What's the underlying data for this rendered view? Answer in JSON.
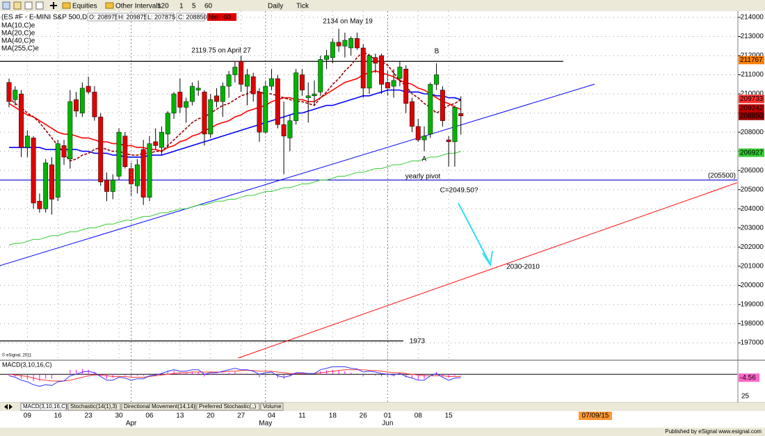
{
  "toolbar": {
    "items": [
      "Equities",
      "Other Intervals",
      "120",
      "1",
      "5",
      "60",
      "Daily",
      "Tick"
    ]
  },
  "quote": {
    "fields": [
      "O: 208975",
      "H: 209875",
      "L: 207875",
      "C: 208850"
    ],
    "net": "Net: -50"
  },
  "tabs": [
    "MACD(3,10,16,C)",
    "Stochastic(14(1),3)",
    "Directional Movement(14,14)",
    "Preferred Stochastic(,,)",
    "Volume"
  ],
  "footer": "Published by eSignal  www.esignal.com",
  "chart_data": {
    "type": "candlestick",
    "title": "(ES #F - E-MINI S&P 500,D)",
    "categories": [
      null,
      null,
      null,
      "09",
      null,
      null,
      null,
      null,
      "16",
      null,
      null,
      null,
      null,
      "23",
      null,
      null,
      null,
      null,
      "30",
      null,
      null,
      null,
      null,
      "06",
      null,
      null,
      null,
      null,
      "13",
      null,
      null,
      null,
      null,
      "20",
      null,
      null,
      null,
      null,
      "27",
      null,
      null,
      null,
      null,
      "04",
      null,
      null,
      null,
      null,
      "11",
      null,
      null,
      null,
      null,
      "18",
      null,
      null,
      null,
      null,
      "26",
      null,
      null,
      null,
      "01",
      null,
      null,
      null,
      null,
      "08",
      null,
      null,
      null,
      null,
      "15",
      null,
      null
    ],
    "category_groups": [
      null,
      null,
      null,
      null,
      null,
      null,
      null,
      null,
      null,
      null,
      null,
      null,
      null,
      null,
      null,
      null,
      null,
      null,
      null,
      null,
      "Apr",
      null,
      null,
      null,
      null,
      null,
      null,
      null,
      null,
      null,
      null,
      null,
      null,
      null,
      null,
      null,
      null,
      null,
      null,
      null,
      null,
      null,
      "May",
      null,
      null,
      null,
      null,
      null,
      null,
      null,
      null,
      null,
      null,
      null,
      null,
      null,
      null,
      null,
      null,
      null,
      null,
      null,
      "Jun",
      null,
      null,
      null,
      null,
      null,
      null,
      null,
      null,
      null,
      null,
      null,
      null
    ],
    "open": [
      210600,
      209700,
      210000,
      207200,
      207700,
      204400,
      204000,
      206300,
      204600,
      207300,
      206600,
      209700,
      209000,
      210400,
      210100,
      208800,
      205500,
      204900,
      205700,
      207800,
      206100,
      205200,
      207100,
      204600,
      207500,
      207200,
      207900,
      209000,
      210100,
      209300,
      209600,
      210200,
      210100,
      207900,
      209900,
      209600,
      210400,
      211000,
      211700,
      210400,
      210900,
      210100,
      208000,
      210400,
      210800,
      208400,
      207700,
      208600,
      211000,
      209800,
      209900,
      210100,
      211800,
      211900,
      212700,
      212500,
      212400,
      212900,
      212400,
      210300,
      211900,
      212000,
      210600,
      210400,
      210800,
      211300,
      209600,
      208300,
      207600,
      207900,
      210500,
      210200,
      207600,
      207500,
      208975
    ],
    "high": [
      210800,
      210400,
      210200,
      208100,
      207800,
      204800,
      206600,
      206700,
      207600,
      207600,
      210200,
      210100,
      210600,
      210900,
      210400,
      209000,
      205900,
      205800,
      208200,
      208000,
      206400,
      206600,
      207600,
      207800,
      208200,
      208300,
      209100,
      210100,
      210800,
      209800,
      210600,
      210700,
      210200,
      210000,
      210300,
      210600,
      211200,
      211700,
      212000,
      211300,
      211100,
      210300,
      210700,
      211300,
      211000,
      209600,
      208900,
      211300,
      211300,
      210600,
      210700,
      212000,
      212300,
      212900,
      213400,
      213200,
      213000,
      213200,
      212600,
      212100,
      212100,
      212100,
      211200,
      211300,
      211700,
      211500,
      209800,
      208700,
      208300,
      210600,
      211600,
      210400,
      207800,
      209400,
      209875
    ],
    "low": [
      209300,
      209400,
      206700,
      206700,
      204000,
      203800,
      203800,
      203700,
      204400,
      206300,
      206100,
      208800,
      208800,
      210000,
      208600,
      205200,
      204400,
      204500,
      205500,
      206100,
      204700,
      204800,
      204200,
      204400,
      207100,
      206800,
      207200,
      208700,
      209000,
      208500,
      209400,
      209900,
      207300,
      207700,
      209300,
      208800,
      209800,
      210600,
      210100,
      209400,
      209600,
      207500,
      207900,
      210200,
      208200,
      205800,
      207000,
      208400,
      209900,
      208500,
      209400,
      209900,
      211300,
      211600,
      212200,
      211900,
      212000,
      212300,
      209800,
      210000,
      211100,
      210000,
      209900,
      209800,
      210400,
      209000,
      208000,
      207500,
      207000,
      207700,
      210200,
      208300,
      206200,
      206200,
      207875
    ],
    "close": [
      209600,
      210200,
      207200,
      207800,
      204300,
      204000,
      206400,
      204500,
      207400,
      206700,
      209600,
      209100,
      210300,
      210100,
      208800,
      205400,
      204900,
      205500,
      208000,
      206200,
      205300,
      206300,
      204600,
      207400,
      207300,
      208000,
      209000,
      210000,
      209300,
      209600,
      210400,
      210300,
      207900,
      209700,
      209600,
      210400,
      211000,
      211400,
      210500,
      211000,
      210000,
      208000,
      210400,
      210800,
      208400,
      207800,
      208600,
      211100,
      210200,
      209900,
      210000,
      211800,
      212000,
      212700,
      212500,
      212800,
      212900,
      212400,
      210300,
      212000,
      211600,
      210500,
      210300,
      210700,
      211400,
      209500,
      208300,
      207600,
      207800,
      210500,
      211000,
      208600,
      207500,
      209300,
      208850
    ],
    "up_color": "#00b400",
    "down_color": "#e00000",
    "series": [
      {
        "name": "MA(10,C)e",
        "color": "#990000",
        "dashed": true,
        "values": [
          209800,
          209500,
          209300,
          209000,
          208800,
          208500,
          208100,
          207700,
          207300,
          206900,
          206500,
          206600,
          206800,
          206900,
          207100,
          207200,
          207100,
          207000,
          207000,
          206900,
          206800,
          206800,
          206900,
          206900,
          207000,
          207000,
          207300,
          207600,
          207900,
          208200,
          208500,
          208700,
          208800,
          209000,
          209200,
          209400,
          209500,
          209700,
          209900,
          210000,
          210200,
          210100,
          210000,
          210000,
          209900,
          209800,
          209700,
          209600,
          209600,
          209500,
          209400,
          209800,
          210100,
          210500,
          210800,
          211200,
          211500,
          211900,
          212200,
          212000,
          211800,
          211700,
          211500,
          211100,
          210700,
          210400,
          210000,
          209800,
          209500,
          209300,
          209000,
          209200,
          209400,
          209500,
          209700
        ]
      },
      {
        "name": "MA(20,C)e",
        "color": "#ff0000",
        "values": [
          209500,
          209300,
          209100,
          208900,
          208800,
          208600,
          208400,
          208200,
          208000,
          207900,
          207900,
          207800,
          207700,
          207700,
          207600,
          207500,
          207500,
          207400,
          207400,
          207300,
          207300,
          207200,
          207200,
          207100,
          207100,
          207000,
          207200,
          207300,
          207500,
          207600,
          207800,
          207900,
          208100,
          208200,
          208400,
          208500,
          208600,
          208800,
          208900,
          209100,
          209200,
          209300,
          209400,
          209600,
          209700,
          209800,
          209800,
          209700,
          209700,
          209600,
          209600,
          209800,
          210000,
          210200,
          210400,
          210600,
          210700,
          210800,
          211000,
          211100,
          211200,
          211100,
          211000,
          210900,
          210700,
          210600,
          210500,
          210300,
          210200,
          210000,
          209800,
          209600,
          209500,
          209300,
          209200
        ]
      },
      {
        "name": "MA(40,C)e",
        "color": "#0000ff",
        "values": [
          207200,
          207200,
          207200,
          207200,
          207200,
          207200,
          207100,
          207100,
          207100,
          207100,
          207100,
          207100,
          207000,
          207000,
          206900,
          206900,
          206900,
          206800,
          206800,
          206700,
          206700,
          206700,
          206700,
          206800,
          206800,
          206800,
          206900,
          207000,
          207100,
          207200,
          207300,
          207400,
          207500,
          207600,
          207700,
          207800,
          207900,
          208000,
          208100,
          208200,
          208300,
          208400,
          208500,
          208600,
          208700,
          208800,
          208900,
          209000,
          209000,
          209100,
          209200,
          209300,
          209400,
          209400,
          209500,
          209600,
          209700,
          209800,
          209900,
          209900,
          210000,
          210100,
          210200,
          210200,
          210200,
          210100,
          210100,
          210100,
          210000,
          210000,
          209900,
          209900,
          209800,
          209800,
          209700
        ]
      },
      {
        "name": "MA(255,C)e",
        "color": "#33cc33",
        "values": [
          202100,
          202200,
          202200,
          202300,
          202400,
          202400,
          202500,
          202600,
          202600,
          202700,
          202800,
          202800,
          202900,
          203000,
          203000,
          203100,
          203200,
          203200,
          203300,
          203400,
          203400,
          203500,
          203600,
          203600,
          203700,
          203800,
          203800,
          203900,
          204000,
          204000,
          204100,
          204200,
          204200,
          204300,
          204400,
          204400,
          204500,
          204500,
          204600,
          204700,
          204700,
          204800,
          204900,
          204900,
          205000,
          205100,
          205100,
          205200,
          205300,
          205300,
          205400,
          205500,
          205500,
          205600,
          205700,
          205700,
          205800,
          205900,
          205900,
          206000,
          206100,
          206100,
          206200,
          206300,
          206300,
          206400,
          206500,
          206500,
          206600,
          206700,
          206700,
          206800,
          206900,
          206900,
          207000
        ]
      }
    ],
    "ylim": [
      196200,
      214360
    ],
    "yticks": [
      197000,
      198000,
      199000,
      200000,
      201000,
      202000,
      203000,
      204000,
      205000,
      206000,
      207000,
      208000,
      209000,
      210000,
      211000,
      212000,
      213000,
      214000
    ],
    "grid": true,
    "hlines": [
      {
        "value": 211700,
        "color": "#000000"
      },
      {
        "value": 205500,
        "label": "(205500)",
        "color": "#0000cc"
      },
      {
        "value": 197100,
        "color": "#000000"
      }
    ],
    "trendlines": [
      {
        "color": "#0000ff",
        "x": [
          -1.5,
          95.9
        ],
        "y": [
          201030,
          210510
        ]
      },
      {
        "color": "#ff0000",
        "x": [
          37.5,
          119.5
        ],
        "y": [
          196200,
          205390
        ]
      }
    ],
    "price_tags": [
      {
        "value": 211767,
        "color": "#ff8000"
      },
      {
        "value": 209733,
        "color": "#ff3030"
      },
      {
        "value": 209242,
        "color": "#cc0000"
      },
      {
        "value": 208850,
        "color": "#990000"
      },
      {
        "value": 206927,
        "color": "#33cc33"
      }
    ],
    "annotations": [
      "2134 on May 19",
      "2119.75 on April 27",
      "B",
      "A",
      "yearly pivot",
      "C=2049.50?",
      "2030-2010",
      "1973",
      "© eSignal, 2011"
    ],
    "date_tag": "07/09/15"
  },
  "macd": {
    "type": "line",
    "title": "MACD(3,10,16,C)",
    "ylim": [
      -35,
      15
    ],
    "scale_label": "25",
    "macd_color": "#3333ff",
    "signal_color": "#ff3333",
    "histogram_color": "#ff00ff",
    "macd": [
      -2,
      -4,
      -8,
      -10,
      -14,
      -16,
      -14,
      -15,
      -10,
      -9,
      -2,
      0,
      3,
      4,
      2,
      -3,
      -8,
      -8,
      -4,
      -5,
      -8,
      -6,
      -6,
      -2,
      -1,
      1,
      4,
      6,
      4,
      4,
      6,
      6,
      0,
      2,
      2,
      4,
      6,
      8,
      6,
      6,
      4,
      0,
      2,
      3,
      -2,
      -4,
      -2,
      2,
      2,
      1,
      1,
      6,
      8,
      10,
      10,
      10,
      8,
      7,
      3,
      4,
      3,
      1,
      0,
      -1,
      1,
      -3,
      -5,
      -8,
      -8,
      -2,
      1,
      -4,
      -8,
      -5,
      -4.56
    ],
    "signal": [
      0,
      -1,
      -2,
      -3,
      -5,
      -7,
      -8,
      -9,
      -9,
      -9,
      -8,
      -6,
      -4,
      -2,
      -1,
      -1,
      -2,
      -3,
      -3,
      -3,
      -4,
      -4,
      -4,
      -3,
      -2,
      -1,
      0,
      1,
      2,
      2,
      3,
      3,
      3,
      3,
      3,
      3,
      4,
      4,
      5,
      5,
      5,
      4,
      4,
      4,
      3,
      2,
      1,
      1,
      1,
      1,
      1,
      2,
      3,
      4,
      5,
      6,
      6,
      6,
      6,
      5,
      5,
      4,
      3,
      2,
      2,
      1,
      0,
      -1,
      -2,
      -2,
      -2,
      -2,
      -3,
      -3,
      -3
    ],
    "histogram": [
      -2,
      -3,
      -6,
      -7,
      -9,
      -9,
      -6,
      -6,
      -1,
      0,
      6,
      6,
      7,
      6,
      3,
      -2,
      -6,
      -5,
      -1,
      -2,
      -4,
      -2,
      -2,
      1,
      1,
      2,
      4,
      5,
      2,
      2,
      3,
      3,
      -3,
      -1,
      -1,
      1,
      2,
      4,
      1,
      1,
      -1,
      -4,
      -2,
      -1,
      -5,
      -6,
      -3,
      1,
      1,
      0,
      0,
      4,
      5,
      6,
      5,
      4,
      2,
      1,
      -3,
      -1,
      -2,
      -3,
      -3,
      -3,
      -1,
      -4,
      -5,
      -7,
      -6,
      0,
      3,
      -2,
      -5,
      -2,
      -1
    ]
  }
}
